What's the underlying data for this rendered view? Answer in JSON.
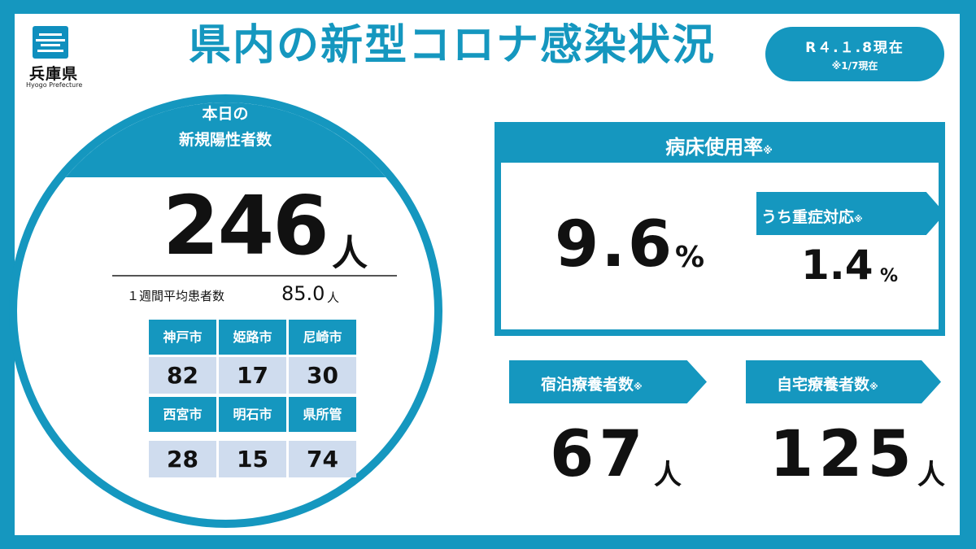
{
  "header": {
    "logo_text": "兵庫県",
    "logo_sub": "Hyogo Prefecture",
    "title": "県内の新型コロナ感染状況",
    "date_line1": "R４.１.8現在",
    "date_line2": "※1/7現在"
  },
  "new_cases": {
    "band_line1": "本日の",
    "band_line2": "新規陽性者数",
    "count": "246",
    "unit": "人",
    "weekly_avg_label": "１週間平均患者数",
    "weekly_avg_value": "85.0",
    "weekly_avg_unit": "人"
  },
  "cities": [
    {
      "name": "神戸市",
      "value": "82"
    },
    {
      "name": "姫路市",
      "value": "17"
    },
    {
      "name": "尼崎市",
      "value": "30"
    },
    {
      "name": "西宮市",
      "value": "28"
    },
    {
      "name": "明石市",
      "value": "15"
    },
    {
      "name": "県所管",
      "value": "74"
    }
  ],
  "bed_usage": {
    "title": "病床使用率",
    "mark": "※",
    "value": "9.6",
    "unit": "%",
    "severe_label": "うち重症対応",
    "severe_mark": "※",
    "severe_value": "1.4",
    "severe_unit": "%"
  },
  "hotel": {
    "label": "宿泊療養者数",
    "mark": "※",
    "value": "67",
    "unit": "人"
  },
  "home": {
    "label": "自宅療養者数",
    "mark": "※",
    "value": "125",
    "unit": "人"
  },
  "colors": {
    "accent": "#1597bf",
    "cell_bg": "#cfdcee",
    "text": "#111111"
  }
}
